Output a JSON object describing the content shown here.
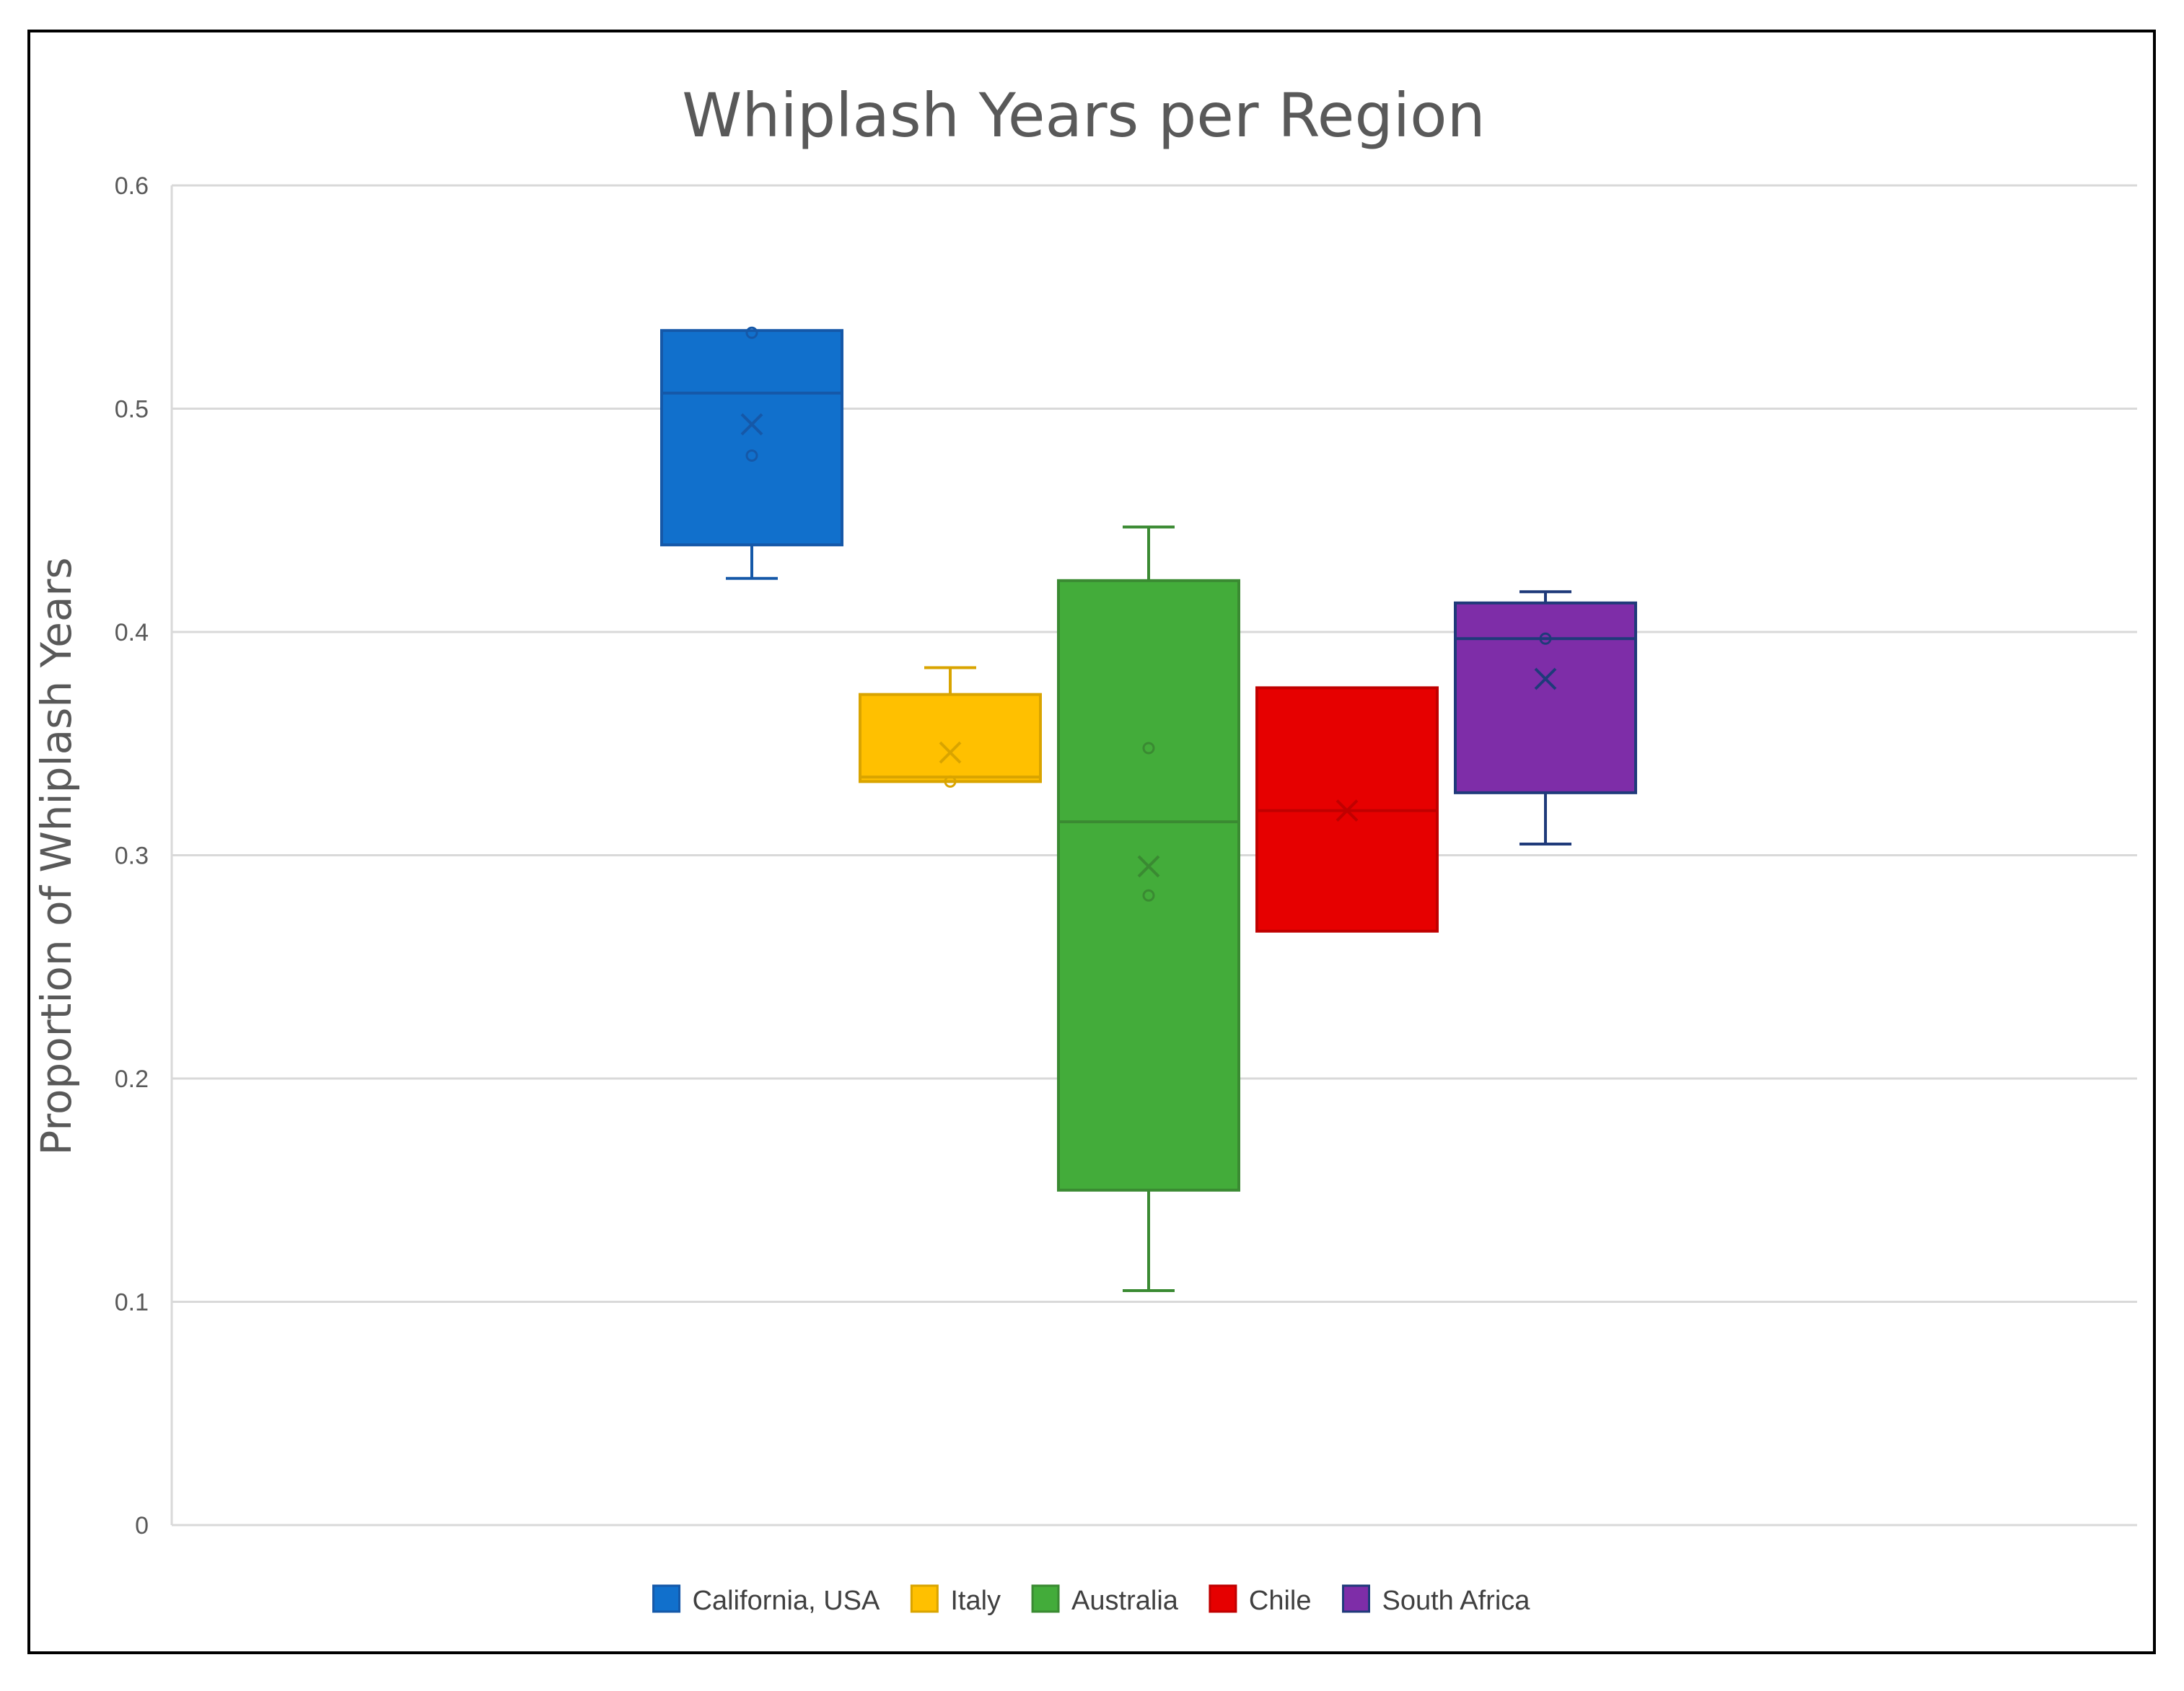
{
  "chart_data": {
    "type": "boxplot",
    "title": "Whiplash Years per Region",
    "xlabel": "",
    "ylabel": "Proportion of  Whiplash Years",
    "ylim": [
      0,
      0.6
    ],
    "yticks": [
      0,
      0.1,
      0.2,
      0.3,
      0.4,
      0.5,
      0.6
    ],
    "ytick_labels": [
      "0",
      "0.1",
      "0.2",
      "0.3",
      "0.4",
      "0.5",
      "0.6"
    ],
    "grid": true,
    "legend_position": "bottom",
    "series": [
      {
        "name": "California, USA",
        "color": "#1170CC",
        "edge": "#1558A8",
        "whisker_low": 0.424,
        "q1": 0.439,
        "median": 0.507,
        "q3": 0.535,
        "whisker_high": 0.535,
        "mean": 0.493,
        "points": [
          0.534,
          0.479
        ]
      },
      {
        "name": "Italy",
        "color": "#FFC000",
        "edge": "#D9A400",
        "whisker_low": 0.333,
        "q1": 0.333,
        "median": 0.335,
        "q3": 0.372,
        "whisker_high": 0.384,
        "mean": 0.346,
        "points": [
          0.333
        ]
      },
      {
        "name": "Australia",
        "color": "#43AC3A",
        "edge": "#3A8A32",
        "whisker_low": 0.105,
        "q1": 0.15,
        "median": 0.315,
        "q3": 0.423,
        "whisker_high": 0.447,
        "mean": 0.295,
        "points": [
          0.348,
          0.282
        ]
      },
      {
        "name": "Chile",
        "color": "#E60000",
        "edge": "#C00000",
        "whisker_low": 0.266,
        "q1": 0.266,
        "median": 0.32,
        "q3": 0.375,
        "whisker_high": 0.375,
        "mean": 0.32,
        "points": []
      },
      {
        "name": "South Africa",
        "color": "#7E2DA8",
        "edge": "#1F3A7A",
        "whisker_low": 0.305,
        "q1": 0.328,
        "median": 0.397,
        "q3": 0.413,
        "whisker_high": 0.418,
        "mean": 0.379,
        "points": [
          0.397
        ]
      }
    ]
  }
}
